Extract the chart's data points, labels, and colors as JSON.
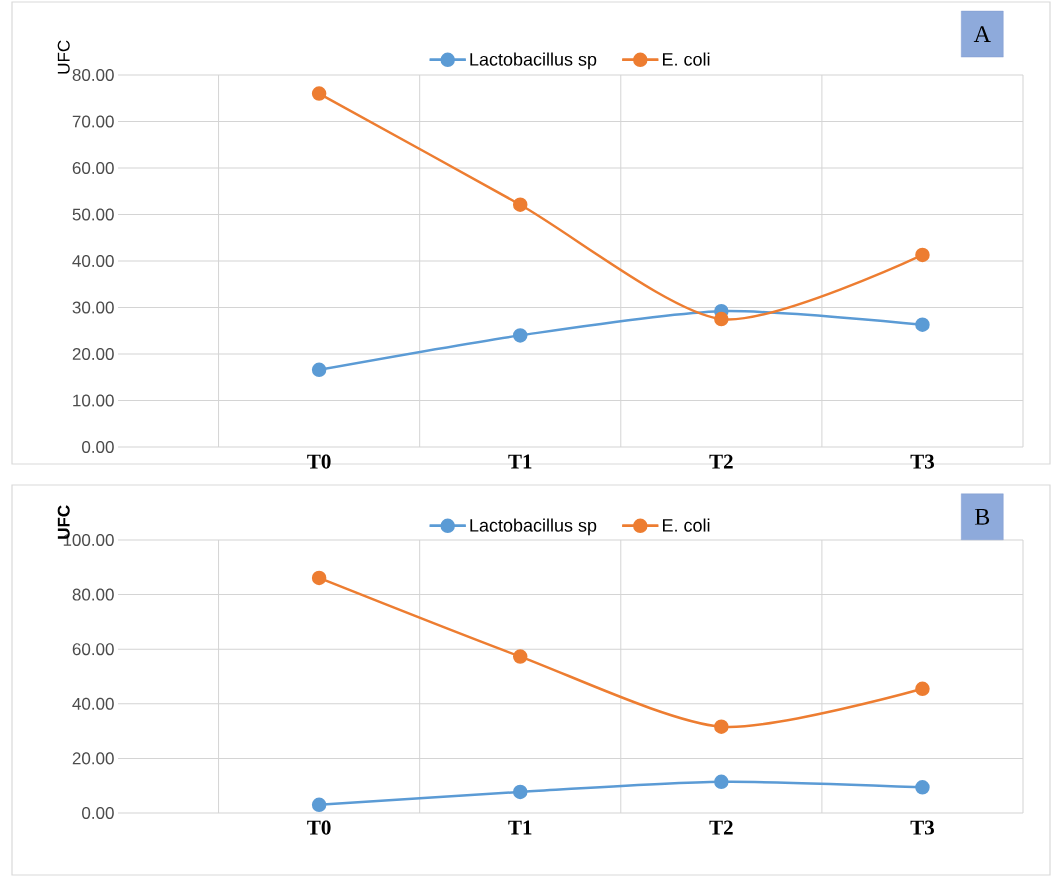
{
  "chart_data": [
    {
      "type": "line",
      "categories": [
        null,
        "T0",
        "T1",
        "T2",
        "T3"
      ],
      "ylabel": "UFC",
      "ylim": [
        0,
        80
      ],
      "yticks": [
        {
          "value": 0,
          "label": "0.00"
        },
        {
          "value": 10,
          "label": "10.00"
        },
        {
          "value": 20,
          "label": "20.00"
        },
        {
          "value": 30,
          "label": "30.00"
        },
        {
          "value": 40,
          "label": "40.00"
        },
        {
          "value": 50,
          "label": "50.00"
        },
        {
          "value": 60,
          "label": "60.00"
        },
        {
          "value": 70,
          "label": "70.00"
        },
        {
          "value": 80,
          "label": "80.00"
        }
      ],
      "series": [
        {
          "name": "Lactobacillus sp",
          "color": "#5b9bd5",
          "values": [
            null,
            16.6,
            24.0,
            29.2,
            26.3
          ]
        },
        {
          "name": "E. coli",
          "color": "#ed7d31",
          "values": [
            null,
            76.0,
            52.1,
            27.5,
            41.3
          ]
        }
      ],
      "grid": true,
      "legend": "top",
      "marker": "circle",
      "line_style": "solid",
      "annotations": [
        "A"
      ]
    },
    {
      "type": "line",
      "categories": [
        null,
        "T0",
        "T1",
        "T2",
        "T3"
      ],
      "ylabel": "UFC",
      "ylim": [
        0,
        100
      ],
      "yticks": [
        {
          "value": 0,
          "label": "0.00"
        },
        {
          "value": 20,
          "label": "20.00"
        },
        {
          "value": 40,
          "label": "40.00"
        },
        {
          "value": 60,
          "label": "60.00"
        },
        {
          "value": 80,
          "label": "80.00"
        },
        {
          "value": 100,
          "label": "100.00"
        }
      ],
      "series": [
        {
          "name": "Lactobacillus sp",
          "color": "#5b9bd5",
          "values": [
            null,
            3.0,
            7.7,
            11.4,
            9.4
          ]
        },
        {
          "name": "E. coli",
          "color": "#ed7d31",
          "values": [
            null,
            86.1,
            57.3,
            31.6,
            45.5
          ]
        }
      ],
      "grid": true,
      "legend": "top",
      "marker": "circle",
      "line_style": "solid",
      "annotations": [
        "B"
      ]
    }
  ]
}
